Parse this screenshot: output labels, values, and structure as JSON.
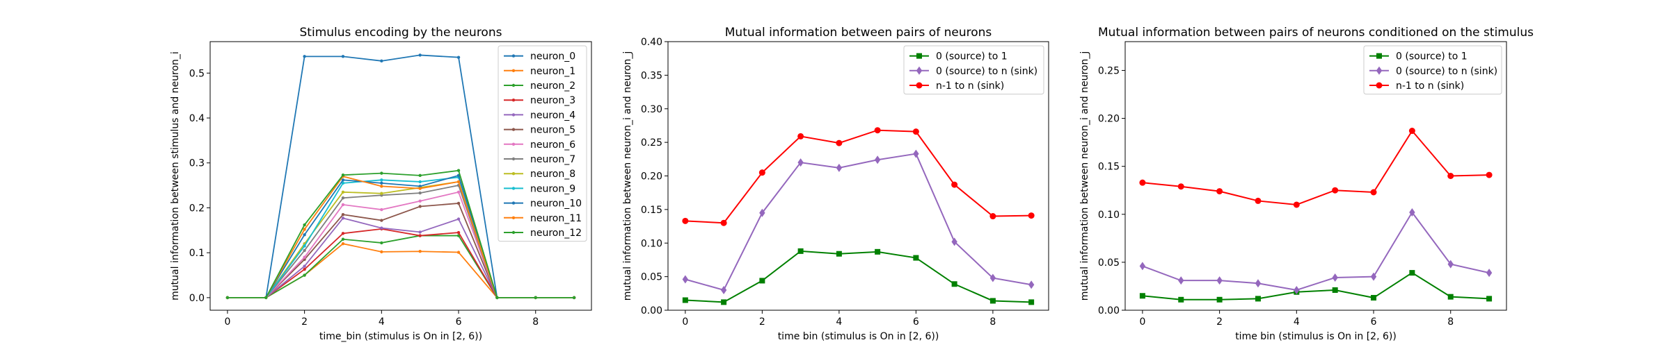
{
  "chart_data": [
    {
      "type": "line",
      "title": "Stimulus encoding by the neurons",
      "xlabel": "time_bin (stimulus is On in [2, 6))",
      "ylabel": "mutual information between stimulus and neuron_i",
      "xlim": [
        -0.45,
        9.45
      ],
      "ylim": [
        -0.028,
        0.57
      ],
      "xticks": [
        0,
        2,
        4,
        6,
        8
      ],
      "yticks": [
        0.0,
        0.1,
        0.2,
        0.3,
        0.4,
        0.5
      ],
      "ytick_decimals": 1,
      "legend": "top-right",
      "marker_style": "small-dot",
      "x": [
        0,
        1,
        2,
        3,
        4,
        5,
        6,
        7,
        8,
        9
      ],
      "series": [
        {
          "name": "neuron_0",
          "color": "#1f77b4",
          "marker": "dot",
          "values": [
            0,
            0,
            0.537,
            0.537,
            0.527,
            0.54,
            0.535,
            0,
            0,
            0
          ]
        },
        {
          "name": "neuron_1",
          "color": "#ff7f0e",
          "marker": "dot",
          "values": [
            0,
            0,
            0.05,
            0.12,
            0.102,
            0.103,
            0.101,
            0,
            0,
            0
          ]
        },
        {
          "name": "neuron_2",
          "color": "#2ca02c",
          "marker": "dot",
          "values": [
            0,
            0,
            0.05,
            0.13,
            0.122,
            0.138,
            0.138,
            0,
            0,
            0
          ]
        },
        {
          "name": "neuron_3",
          "color": "#d62728",
          "marker": "dot",
          "values": [
            0,
            0,
            0.063,
            0.143,
            0.153,
            0.138,
            0.145,
            0,
            0,
            0
          ]
        },
        {
          "name": "neuron_4",
          "color": "#9467bd",
          "marker": "dot",
          "values": [
            0,
            0,
            0.07,
            0.177,
            0.155,
            0.146,
            0.175,
            0,
            0,
            0
          ]
        },
        {
          "name": "neuron_5",
          "color": "#8c564b",
          "marker": "dot",
          "values": [
            0,
            0,
            0.085,
            0.185,
            0.172,
            0.203,
            0.21,
            0,
            0,
            0
          ]
        },
        {
          "name": "neuron_6",
          "color": "#e377c2",
          "marker": "dot",
          "values": [
            0,
            0,
            0.09,
            0.207,
            0.196,
            0.215,
            0.235,
            0,
            0,
            0
          ]
        },
        {
          "name": "neuron_7",
          "color": "#7f7f7f",
          "marker": "dot",
          "values": [
            0,
            0,
            0.105,
            0.222,
            0.228,
            0.233,
            0.25,
            0,
            0,
            0
          ]
        },
        {
          "name": "neuron_8",
          "color": "#bcbd22",
          "marker": "dot",
          "values": [
            0,
            0,
            0.12,
            0.235,
            0.232,
            0.245,
            0.258,
            0,
            0,
            0
          ]
        },
        {
          "name": "neuron_9",
          "color": "#17becf",
          "marker": "dot",
          "values": [
            0,
            0,
            0.115,
            0.255,
            0.262,
            0.258,
            0.268,
            0,
            0,
            0
          ]
        },
        {
          "name": "neuron_10",
          "color": "#1f77b4",
          "marker": "dot",
          "values": [
            0,
            0,
            0.14,
            0.262,
            0.255,
            0.248,
            0.272,
            0,
            0,
            0
          ]
        },
        {
          "name": "neuron_11",
          "color": "#ff7f0e",
          "marker": "dot",
          "values": [
            0,
            0,
            0.152,
            0.27,
            0.248,
            0.243,
            0.258,
            0,
            0,
            0
          ]
        },
        {
          "name": "neuron_12",
          "color": "#2ca02c",
          "marker": "dot",
          "values": [
            0,
            0,
            0.162,
            0.273,
            0.277,
            0.272,
            0.283,
            0,
            0,
            0
          ]
        }
      ]
    },
    {
      "type": "line",
      "title": "Mutual information between pairs of neurons",
      "xlabel": "time bin (stimulus is On in [2, 6))",
      "ylabel": "mutual information between neuron_i and neuron_j",
      "xlim": [
        -0.45,
        9.45
      ],
      "ylim": [
        0.0,
        0.4
      ],
      "xticks": [
        0,
        2,
        4,
        6,
        8
      ],
      "yticks": [
        0.0,
        0.05,
        0.1,
        0.15,
        0.2,
        0.25,
        0.3,
        0.35,
        0.4
      ],
      "ytick_decimals": 2,
      "legend": "top-right",
      "x": [
        0,
        1,
        2,
        3,
        4,
        5,
        6,
        7,
        8,
        9
      ],
      "series": [
        {
          "name": "0 (source) to 1",
          "color": "#008000",
          "marker": "square",
          "values": [
            0.015,
            0.012,
            0.044,
            0.088,
            0.084,
            0.087,
            0.078,
            0.039,
            0.014,
            0.012
          ]
        },
        {
          "name": "0 (source) to n (sink)",
          "color": "#9467bd",
          "marker": "diamond",
          "values": [
            0.046,
            0.03,
            0.145,
            0.22,
            0.212,
            0.224,
            0.233,
            0.102,
            0.048,
            0.038
          ]
        },
        {
          "name": "n-1 to n (sink)",
          "color": "#ff0000",
          "marker": "circle",
          "values": [
            0.133,
            0.13,
            0.205,
            0.259,
            0.249,
            0.268,
            0.266,
            0.187,
            0.14,
            0.141
          ]
        }
      ]
    },
    {
      "type": "line",
      "title": "Mutual information between pairs of neurons conditioned on the stimulus",
      "xlabel": "time bin (stimulus is On in [2, 6))",
      "ylabel": "mutual information between neuron_i and neuron_j",
      "xlim": [
        -0.45,
        9.45
      ],
      "ylim": [
        0.0,
        0.28
      ],
      "xticks": [
        0,
        2,
        4,
        6,
        8
      ],
      "yticks": [
        0.0,
        0.05,
        0.1,
        0.15,
        0.2,
        0.25
      ],
      "ytick_decimals": 2,
      "legend": "top-right",
      "x": [
        0,
        1,
        2,
        3,
        4,
        5,
        6,
        7,
        8,
        9
      ],
      "series": [
        {
          "name": "0 (source) to 1",
          "color": "#008000",
          "marker": "square",
          "values": [
            0.015,
            0.011,
            0.011,
            0.012,
            0.019,
            0.021,
            0.013,
            0.039,
            0.014,
            0.012
          ]
        },
        {
          "name": "0 (source) to n (sink)",
          "color": "#9467bd",
          "marker": "diamond",
          "values": [
            0.046,
            0.031,
            0.031,
            0.028,
            0.021,
            0.034,
            0.035,
            0.102,
            0.048,
            0.039
          ]
        },
        {
          "name": "n-1 to n (sink)",
          "color": "#ff0000",
          "marker": "circle",
          "values": [
            0.133,
            0.129,
            0.124,
            0.114,
            0.11,
            0.125,
            0.123,
            0.187,
            0.14,
            0.141
          ]
        }
      ]
    }
  ]
}
